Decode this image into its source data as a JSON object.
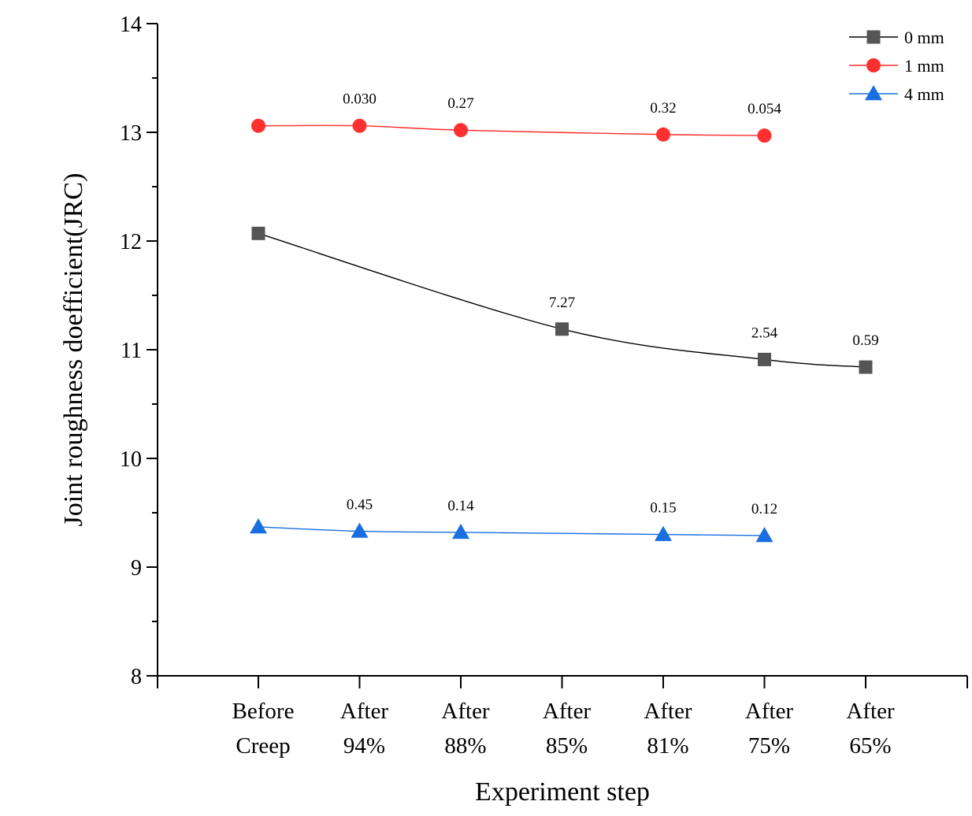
{
  "chart_data": {
    "type": "line",
    "xlabel": "Experiment step",
    "ylabel": "Joint roughness doefficient(JRC)",
    "ylim": [
      8,
      14
    ],
    "yticks": [
      8,
      9,
      10,
      11,
      12,
      13,
      14
    ],
    "grid": false,
    "legend_position": "top-right",
    "categories": [
      [
        "Before",
        "Creep"
      ],
      [
        "After",
        "94%"
      ],
      [
        "After",
        "88%"
      ],
      [
        "After",
        "85%"
      ],
      [
        "After",
        "81%"
      ],
      [
        "After",
        "75%"
      ],
      [
        "After",
        "65%"
      ]
    ],
    "series": [
      {
        "name": "0 mm",
        "marker": "square",
        "color": "#000000",
        "marker_color": "#555555",
        "points": [
          {
            "x": 0,
            "y": 12.07,
            "label": ""
          },
          {
            "x": 3,
            "y": 11.19,
            "label": "7.27"
          },
          {
            "x": 5,
            "y": 10.91,
            "label": "2.54"
          },
          {
            "x": 6,
            "y": 10.84,
            "label": "0.59"
          }
        ]
      },
      {
        "name": "1 mm",
        "marker": "circle",
        "color": "#ff2a2a",
        "marker_color": "#ff3030",
        "points": [
          {
            "x": 0,
            "y": 13.06,
            "label": ""
          },
          {
            "x": 1,
            "y": 13.06,
            "label": "0.030"
          },
          {
            "x": 2,
            "y": 13.02,
            "label": "0.27"
          },
          {
            "x": 4,
            "y": 12.98,
            "label": "0.32"
          },
          {
            "x": 5,
            "y": 12.97,
            "label": "0.054"
          }
        ]
      },
      {
        "name": "4 mm",
        "marker": "triangle",
        "color": "#1a6fe0",
        "marker_color": "#1a6fe0",
        "points": [
          {
            "x": 0,
            "y": 9.37,
            "label": ""
          },
          {
            "x": 1,
            "y": 9.33,
            "label": "0.45"
          },
          {
            "x": 2,
            "y": 9.32,
            "label": "0.14"
          },
          {
            "x": 4,
            "y": 9.3,
            "label": "0.15"
          },
          {
            "x": 5,
            "y": 9.29,
            "label": "0.12"
          }
        ]
      }
    ]
  }
}
